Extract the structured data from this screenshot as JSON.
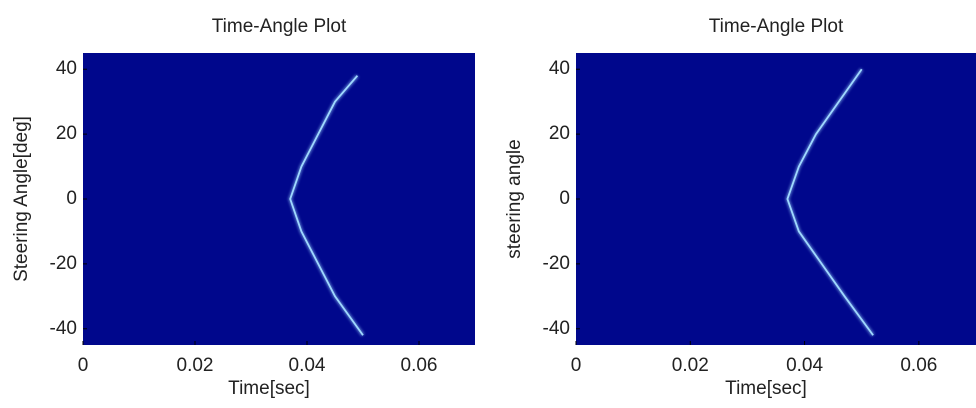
{
  "chart_data": [
    {
      "type": "line",
      "title": "Time-Angle Plot",
      "x_label": "Time[sec]",
      "y_label": "Steering Angle[deg]",
      "background": "#00078c",
      "series": [
        {
          "color": "#9fd8ff",
          "x": [
            0.05,
            0.045,
            0.042,
            0.039,
            0.037,
            0.039,
            0.042,
            0.045,
            0.049
          ],
          "values": [
            -42,
            -30,
            -20,
            -10,
            0,
            10,
            20,
            30,
            38
          ]
        }
      ],
      "xlim": [
        0,
        0.07
      ],
      "xticks": [
        0,
        0.02,
        0.04,
        0.06
      ],
      "ylim": [
        -45,
        45
      ],
      "yticks": [
        -40,
        -20,
        0,
        20,
        40
      ]
    },
    {
      "type": "line",
      "title": "Time-Angle Plot",
      "x_label": "Time[sec]",
      "y_label": "steering angle",
      "background": "#00078c",
      "series": [
        {
          "color": "#9fd8ff",
          "x": [
            0.052,
            0.047,
            0.043,
            0.039,
            0.037,
            0.039,
            0.042,
            0.046,
            0.05
          ],
          "values": [
            -42,
            -30,
            -20,
            -10,
            0,
            10,
            20,
            30,
            40
          ]
        }
      ],
      "xlim": [
        0,
        0.07
      ],
      "xticks": [
        0,
        0.02,
        0.04,
        0.06
      ],
      "ylim": [
        -45,
        45
      ],
      "yticks": [
        -40,
        -20,
        0,
        20,
        40
      ]
    }
  ]
}
